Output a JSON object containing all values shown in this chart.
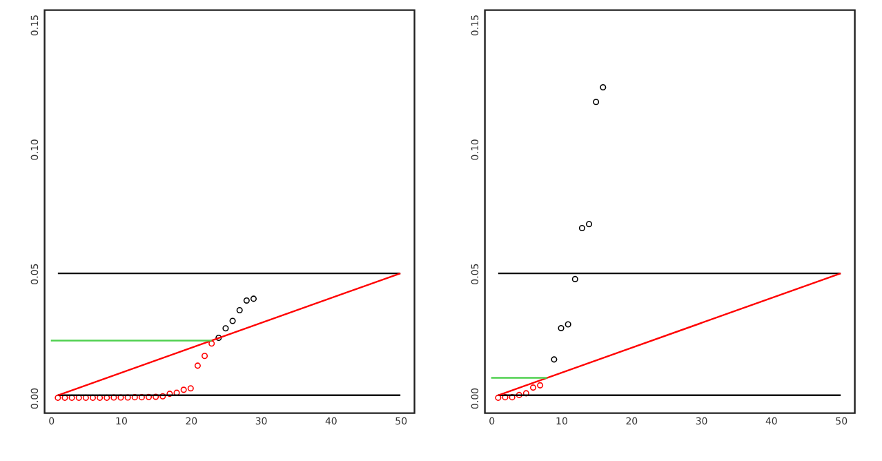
{
  "chart_data": [
    {
      "type": "scatter",
      "grid": false,
      "xlim": [
        -0.96,
        51.96
      ],
      "ylim": [
        -0.006,
        0.156
      ],
      "xticks": [
        0,
        10,
        20,
        30,
        40,
        50
      ],
      "yticks": [
        {
          "value": 0,
          "label": "0.00"
        },
        {
          "value": 0.05,
          "label": "0.05"
        },
        {
          "value": 0.1,
          "label": "0.10"
        },
        {
          "value": 0.15,
          "label": "0.15"
        }
      ],
      "series": [
        {
          "marker": "circle",
          "color": "#ff0000",
          "x": [
            1,
            2,
            3,
            4,
            5,
            6,
            7,
            8,
            9,
            10,
            11,
            12,
            13,
            14,
            15,
            16,
            17,
            18,
            19,
            20,
            21,
            22,
            23
          ],
          "values": [
            0,
            0,
            0,
            0,
            0,
            0,
            0,
            0,
            0.0001,
            0.0001,
            0.0001,
            0.0002,
            0.0002,
            0.0003,
            0.0004,
            0.0006,
            0.0016,
            0.002,
            0.0032,
            0.0038,
            0.0129,
            0.0168,
            0.0218
          ]
        },
        {
          "marker": "circle",
          "color": "#000000",
          "x": [
            24,
            25,
            26,
            27,
            28,
            29
          ],
          "values": [
            0.0241,
            0.0279,
            0.0309,
            0.0352,
            0.0391,
            0.0398
          ]
        },
        {
          "type": "line",
          "color": "#000000",
          "x": [
            1,
            50
          ],
          "values": [
            0.05,
            0.05
          ]
        },
        {
          "type": "line",
          "color": "#000000",
          "x": [
            1,
            50
          ],
          "values": [
            0.001,
            0.001
          ]
        },
        {
          "type": "line",
          "color": "#ff0000",
          "x": [
            1,
            50
          ],
          "values": [
            0.001,
            0.05
          ]
        },
        {
          "type": "line",
          "color": "#4fd04f",
          "x": [
            0,
            23
          ],
          "values": [
            0.023,
            0.023
          ]
        }
      ]
    },
    {
      "type": "scatter",
      "grid": false,
      "xlim": [
        -0.96,
        51.96
      ],
      "ylim": [
        -0.006,
        0.156
      ],
      "xticks": [
        0,
        10,
        20,
        30,
        40,
        50
      ],
      "yticks": [
        {
          "value": 0,
          "label": "0.00"
        },
        {
          "value": 0.05,
          "label": "0.05"
        },
        {
          "value": 0.1,
          "label": "0.10"
        },
        {
          "value": 0.15,
          "label": "0.15"
        }
      ],
      "series": [
        {
          "marker": "circle",
          "color": "#ff0000",
          "x": [
            1,
            2,
            3,
            4,
            5,
            6,
            7
          ],
          "values": [
            0,
            0.0002,
            0.0002,
            0.0011,
            0.0018,
            0.0041,
            0.005
          ]
        },
        {
          "marker": "circle",
          "color": "#000000",
          "x": [
            9,
            10,
            11,
            12,
            13,
            14,
            15,
            16
          ],
          "values": [
            0.0154,
            0.028,
            0.0295,
            0.0477,
            0.0682,
            0.0698,
            0.1189,
            0.1248
          ]
        },
        {
          "type": "line",
          "color": "#000000",
          "x": [
            1,
            50
          ],
          "values": [
            0.05,
            0.05
          ]
        },
        {
          "type": "line",
          "color": "#000000",
          "x": [
            1,
            50
          ],
          "values": [
            0.001,
            0.001
          ]
        },
        {
          "type": "line",
          "color": "#ff0000",
          "x": [
            1,
            50
          ],
          "values": [
            0.001,
            0.05
          ]
        },
        {
          "type": "line",
          "color": "#4fd04f",
          "x": [
            0,
            8
          ],
          "values": [
            0.008,
            0.008
          ]
        }
      ]
    }
  ]
}
